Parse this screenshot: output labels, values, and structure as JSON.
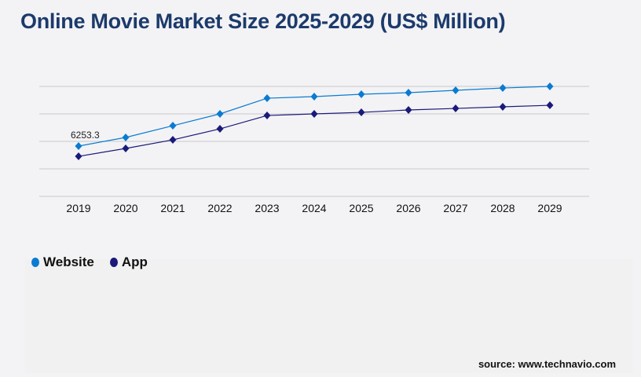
{
  "chart_data": {
    "type": "line",
    "title": "Online Movie Market Size 2025-2029 (US$ Million)",
    "categories": [
      "2019",
      "2020",
      "2021",
      "2022",
      "2023",
      "2024",
      "2025",
      "2026",
      "2027",
      "2028",
      "2029"
    ],
    "series": [
      {
        "name": "Website",
        "color": "#0a7bd1",
        "values": [
          6253.3,
          7330,
          8790,
          10260,
          12210,
          12410,
          12700,
          12900,
          13190,
          13480,
          13680
        ]
      },
      {
        "name": "App",
        "color": "#1a1a7a",
        "values": [
          4980,
          5960,
          7030,
          8400,
          10060,
          10260,
          10450,
          10750,
          10940,
          11140,
          11330
        ]
      }
    ],
    "data_labels": [
      {
        "series": "Website",
        "category": "2019",
        "text": "6253.3"
      }
    ],
    "ylim": [
      0,
      13680
    ],
    "y_ticks_shown": false,
    "grid": true,
    "legend_position": "bottom-left",
    "source": "source: www.technavio.com"
  }
}
